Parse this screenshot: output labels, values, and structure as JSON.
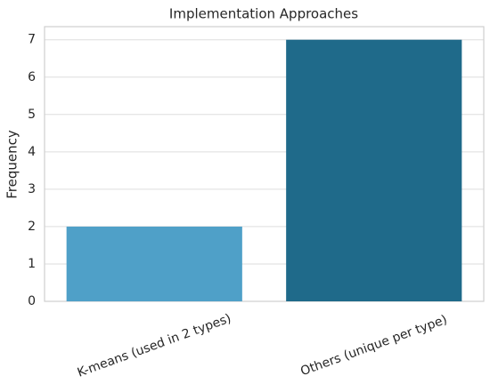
{
  "chart_data": {
    "type": "bar",
    "title": "Implementation Approaches",
    "y_label": "Frequency",
    "categories": [
      "K-means (used in 2 types)",
      "Others (unique per type)"
    ],
    "values": [
      2,
      7
    ],
    "colors": [
      "#4fa0c8",
      "#1f6a8a"
    ],
    "ylim": [
      0,
      7.35
    ],
    "yticks": [
      0,
      1,
      2,
      3,
      4,
      5,
      6,
      7
    ],
    "grid": true
  }
}
